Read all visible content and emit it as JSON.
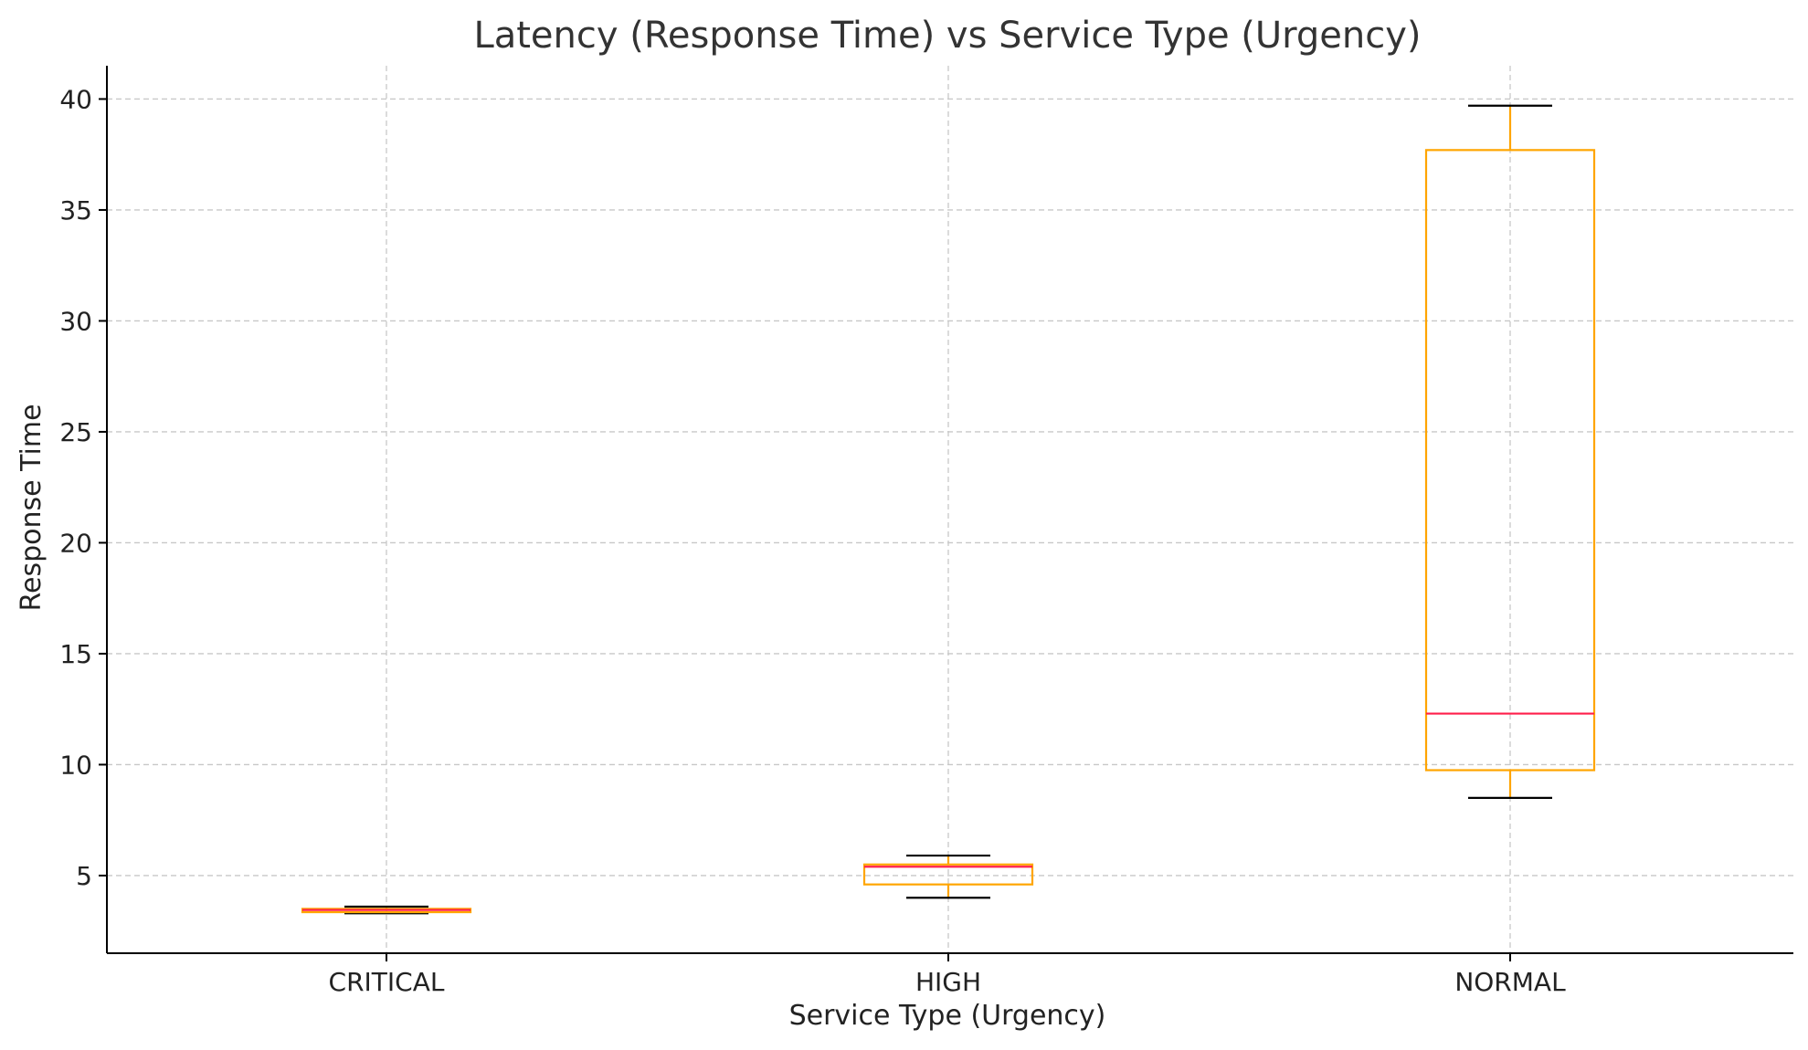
{
  "chart_data": {
    "type": "box",
    "title": "Latency (Response Time) vs Service Type (Urgency)",
    "xlabel": "Service Type (Urgency)",
    "ylabel": "Response Time",
    "categories": [
      "CRITICAL",
      "HIGH",
      "NORMAL"
    ],
    "ylim": [
      1.5,
      41.5
    ],
    "yticks": [
      5,
      10,
      15,
      20,
      25,
      30,
      35,
      40
    ],
    "grid": true,
    "boxes": [
      {
        "category": "CRITICAL",
        "whisker_low": 3.3,
        "q1": 3.35,
        "median": 3.45,
        "q3": 3.5,
        "whisker_high": 3.6
      },
      {
        "category": "HIGH",
        "whisker_low": 4.0,
        "q1": 4.6,
        "median": 5.4,
        "q3": 5.5,
        "whisker_high": 5.9
      },
      {
        "category": "NORMAL",
        "whisker_low": 8.5,
        "q1": 9.75,
        "median": 12.3,
        "q3": 37.7,
        "whisker_high": 39.7
      }
    ],
    "colors": {
      "box": "#FFA500",
      "whisker": "#FFA500",
      "cap": "#000000",
      "median": "#FF1F4B",
      "grid": "#c8c8c8"
    }
  }
}
